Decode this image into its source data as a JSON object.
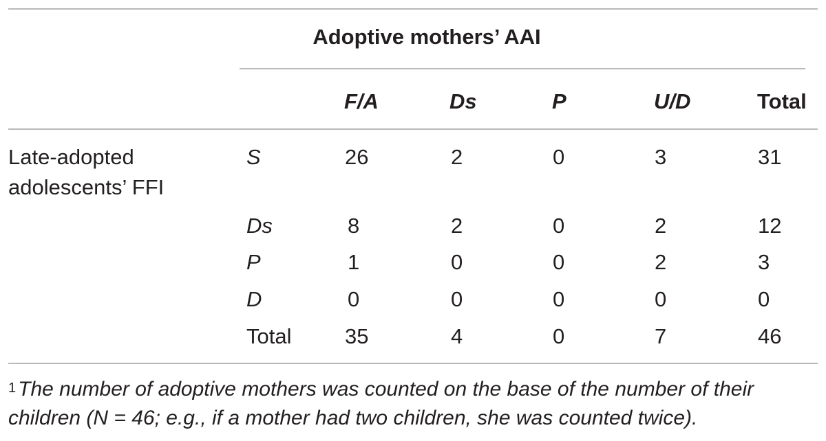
{
  "table": {
    "group_header": "Adoptive mothers’ AAI",
    "columns": [
      "F/A",
      "Ds",
      "P",
      "U/D",
      "Total"
    ],
    "row_group_label": [
      "Late-adopted",
      "adolescents’ FFI"
    ],
    "rows": [
      {
        "label": "S",
        "values": [
          "26",
          "2",
          "0",
          "3",
          "31"
        ]
      },
      {
        "label": "Ds",
        "values": [
          "8",
          "2",
          "0",
          "2",
          "12"
        ]
      },
      {
        "label": "P",
        "values": [
          "1",
          "0",
          "0",
          "2",
          "3"
        ]
      },
      {
        "label": "D",
        "values": [
          "0",
          "0",
          "0",
          "0",
          "0"
        ]
      },
      {
        "label": "Total",
        "values": [
          "35",
          "4",
          "0",
          "7",
          "46"
        ]
      }
    ]
  },
  "footnote": {
    "marker": "1",
    "line1": "The number of adoptive mothers was counted on the base of the number of their",
    "line2": "children (N = 46; e.g., if a mother had two children, she was counted twice)."
  }
}
